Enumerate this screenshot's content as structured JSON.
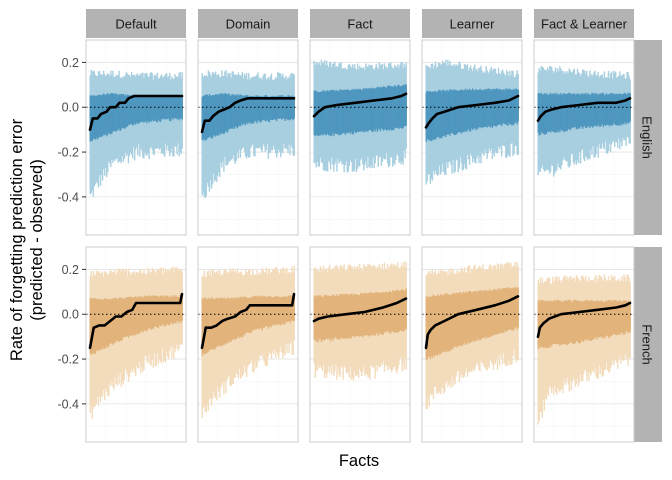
{
  "chart_data": {
    "type": "area",
    "xlabel": "Facts",
    "ylabel": [
      "Rate of forgetting prediction error",
      "(predicted - observed)"
    ],
    "ylim": [
      -0.57,
      0.3
    ],
    "yticks": [
      0.2,
      0.0,
      -0.2,
      -0.4
    ],
    "ytick_labels": [
      "0.2",
      "0.0",
      "-0.2",
      "-0.4"
    ],
    "grid": true,
    "reference_line_y": 0,
    "columns": [
      "Default",
      "Domain",
      "Fact",
      "Learner",
      "Fact & Learner"
    ],
    "rows": [
      "English",
      "French"
    ],
    "row_colors": {
      "English": {
        "outer": "#a8cfe0",
        "inner": "#4f97bf"
      },
      "French": {
        "outer": "#f3dcbc",
        "inner": "#e2b47c"
      }
    },
    "line_color": "#000000",
    "panels": [
      {
        "row": "English",
        "column": "Default",
        "median": [
          [
            0,
            -0.1
          ],
          [
            0.03,
            -0.05
          ],
          [
            0.08,
            -0.05
          ],
          [
            0.12,
            -0.03
          ],
          [
            0.18,
            -0.02
          ],
          [
            0.22,
            0.0
          ],
          [
            0.28,
            0.0
          ],
          [
            0.32,
            0.02
          ],
          [
            0.38,
            0.02
          ],
          [
            0.42,
            0.04
          ],
          [
            0.48,
            0.05
          ],
          [
            1.0,
            0.05
          ]
        ],
        "inner": [
          [
            0,
            -0.15,
            0.05
          ],
          [
            0.2,
            -0.12,
            0.06
          ],
          [
            0.5,
            -0.07,
            0.05
          ],
          [
            1.0,
            -0.05,
            0.05
          ]
        ],
        "outer": [
          [
            0,
            -0.4,
            0.15
          ],
          [
            0.1,
            -0.33,
            0.15
          ],
          [
            0.25,
            -0.25,
            0.15
          ],
          [
            0.5,
            -0.2,
            0.14
          ],
          [
            1.0,
            -0.19,
            0.14
          ]
        ]
      },
      {
        "row": "English",
        "column": "Domain",
        "median": [
          [
            0,
            -0.11
          ],
          [
            0.03,
            -0.06
          ],
          [
            0.08,
            -0.06
          ],
          [
            0.12,
            -0.04
          ],
          [
            0.18,
            -0.02
          ],
          [
            0.24,
            -0.01
          ],
          [
            0.3,
            0.0
          ],
          [
            0.36,
            0.02
          ],
          [
            0.42,
            0.03
          ],
          [
            0.5,
            0.04
          ],
          [
            1.0,
            0.04
          ]
        ],
        "inner": [
          [
            0,
            -0.15,
            0.05
          ],
          [
            0.2,
            -0.12,
            0.06
          ],
          [
            0.5,
            -0.07,
            0.05
          ],
          [
            1.0,
            -0.05,
            0.05
          ]
        ],
        "outer": [
          [
            0,
            -0.4,
            0.15
          ],
          [
            0.1,
            -0.33,
            0.15
          ],
          [
            0.25,
            -0.25,
            0.15
          ],
          [
            0.5,
            -0.2,
            0.14
          ],
          [
            1.0,
            -0.19,
            0.14
          ]
        ]
      },
      {
        "row": "English",
        "column": "Fact",
        "median": [
          [
            0,
            -0.04
          ],
          [
            0.05,
            -0.02
          ],
          [
            0.12,
            0.0
          ],
          [
            0.25,
            0.01
          ],
          [
            0.45,
            0.02
          ],
          [
            0.65,
            0.03
          ],
          [
            0.85,
            0.04
          ],
          [
            0.95,
            0.05
          ],
          [
            1.0,
            0.06
          ]
        ],
        "inner": [
          [
            0,
            -0.13,
            0.07
          ],
          [
            0.5,
            -0.11,
            0.08
          ],
          [
            1.0,
            -0.09,
            0.1
          ]
        ],
        "outer": [
          [
            0,
            -0.25,
            0.2
          ],
          [
            0.5,
            -0.26,
            0.18
          ],
          [
            1.0,
            -0.22,
            0.19
          ]
        ]
      },
      {
        "row": "English",
        "column": "Learner",
        "median": [
          [
            0,
            -0.09
          ],
          [
            0.03,
            -0.07
          ],
          [
            0.07,
            -0.05
          ],
          [
            0.12,
            -0.03
          ],
          [
            0.2,
            -0.02
          ],
          [
            0.35,
            0.0
          ],
          [
            0.55,
            0.01
          ],
          [
            0.75,
            0.02
          ],
          [
            0.9,
            0.03
          ],
          [
            1.0,
            0.05
          ]
        ],
        "inner": [
          [
            0,
            -0.15,
            0.07
          ],
          [
            0.5,
            -0.1,
            0.08
          ],
          [
            1.0,
            -0.07,
            0.08
          ]
        ],
        "outer": [
          [
            0,
            -0.33,
            0.18
          ],
          [
            0.2,
            -0.28,
            0.2
          ],
          [
            0.6,
            -0.22,
            0.17
          ],
          [
            1.0,
            -0.18,
            0.15
          ]
        ]
      },
      {
        "row": "English",
        "column": "Fact & Learner",
        "median": [
          [
            0,
            -0.06
          ],
          [
            0.03,
            -0.04
          ],
          [
            0.08,
            -0.02
          ],
          [
            0.15,
            -0.01
          ],
          [
            0.25,
            0.0
          ],
          [
            0.45,
            0.01
          ],
          [
            0.65,
            0.02
          ],
          [
            0.85,
            0.02
          ],
          [
            0.95,
            0.03
          ],
          [
            1.0,
            0.04
          ]
        ],
        "inner": [
          [
            0,
            -0.12,
            0.06
          ],
          [
            0.5,
            -0.09,
            0.06
          ],
          [
            1.0,
            -0.07,
            0.06
          ]
        ],
        "outer": [
          [
            0,
            -0.3,
            0.17
          ],
          [
            0.2,
            -0.27,
            0.17
          ],
          [
            0.6,
            -0.2,
            0.15
          ],
          [
            1.0,
            -0.15,
            0.14
          ]
        ]
      },
      {
        "row": "French",
        "column": "Default",
        "median": [
          [
            0,
            -0.15
          ],
          [
            0.04,
            -0.06
          ],
          [
            0.1,
            -0.05
          ],
          [
            0.16,
            -0.05
          ],
          [
            0.22,
            -0.03
          ],
          [
            0.28,
            -0.01
          ],
          [
            0.34,
            -0.01
          ],
          [
            0.4,
            0.01
          ],
          [
            0.46,
            0.02
          ],
          [
            0.5,
            0.05
          ],
          [
            0.98,
            0.05
          ],
          [
            1.0,
            0.09
          ]
        ],
        "inner": [
          [
            0,
            -0.18,
            0.07
          ],
          [
            0.3,
            -0.12,
            0.07
          ],
          [
            0.6,
            -0.07,
            0.08
          ],
          [
            1.0,
            -0.03,
            0.08
          ]
        ],
        "outer": [
          [
            0,
            -0.45,
            0.18
          ],
          [
            0.1,
            -0.38,
            0.18
          ],
          [
            0.3,
            -0.3,
            0.19
          ],
          [
            0.6,
            -0.22,
            0.19
          ],
          [
            1.0,
            -0.15,
            0.2
          ]
        ]
      },
      {
        "row": "French",
        "column": "Domain",
        "median": [
          [
            0,
            -0.15
          ],
          [
            0.04,
            -0.06
          ],
          [
            0.1,
            -0.06
          ],
          [
            0.16,
            -0.05
          ],
          [
            0.22,
            -0.03
          ],
          [
            0.28,
            -0.02
          ],
          [
            0.36,
            -0.01
          ],
          [
            0.42,
            0.01
          ],
          [
            0.48,
            0.02
          ],
          [
            0.52,
            0.04
          ],
          [
            0.98,
            0.04
          ],
          [
            1.0,
            0.09
          ]
        ],
        "inner": [
          [
            0,
            -0.18,
            0.07
          ],
          [
            0.3,
            -0.12,
            0.07
          ],
          [
            0.6,
            -0.07,
            0.08
          ],
          [
            1.0,
            -0.03,
            0.08
          ]
        ],
        "outer": [
          [
            0,
            -0.45,
            0.18
          ],
          [
            0.1,
            -0.38,
            0.18
          ],
          [
            0.3,
            -0.3,
            0.19
          ],
          [
            0.6,
            -0.22,
            0.19
          ],
          [
            1.0,
            -0.15,
            0.2
          ]
        ]
      },
      {
        "row": "French",
        "column": "Fact",
        "median": [
          [
            0,
            -0.03
          ],
          [
            0.05,
            -0.02
          ],
          [
            0.15,
            -0.01
          ],
          [
            0.35,
            0.0
          ],
          [
            0.55,
            0.01
          ],
          [
            0.75,
            0.03
          ],
          [
            0.9,
            0.05
          ],
          [
            1.0,
            0.07
          ]
        ],
        "inner": [
          [
            0,
            -0.12,
            0.08
          ],
          [
            0.5,
            -0.1,
            0.09
          ],
          [
            1.0,
            -0.07,
            0.11
          ]
        ],
        "outer": [
          [
            0,
            -0.25,
            0.2
          ],
          [
            0.5,
            -0.27,
            0.21
          ],
          [
            1.0,
            -0.22,
            0.22
          ]
        ]
      },
      {
        "row": "French",
        "column": "Learner",
        "median": [
          [
            0,
            -0.15
          ],
          [
            0.02,
            -0.09
          ],
          [
            0.05,
            -0.07
          ],
          [
            0.1,
            -0.05
          ],
          [
            0.2,
            -0.03
          ],
          [
            0.35,
            0.0
          ],
          [
            0.55,
            0.02
          ],
          [
            0.75,
            0.04
          ],
          [
            0.9,
            0.06
          ],
          [
            1.0,
            0.08
          ]
        ],
        "inner": [
          [
            0,
            -0.2,
            0.08
          ],
          [
            0.5,
            -0.12,
            0.1
          ],
          [
            1.0,
            -0.06,
            0.12
          ]
        ],
        "outer": [
          [
            0,
            -0.4,
            0.18
          ],
          [
            0.1,
            -0.35,
            0.18
          ],
          [
            0.4,
            -0.27,
            0.2
          ],
          [
            1.0,
            -0.18,
            0.22
          ]
        ]
      },
      {
        "row": "French",
        "column": "Fact & Learner",
        "median": [
          [
            0,
            -0.1
          ],
          [
            0.02,
            -0.06
          ],
          [
            0.06,
            -0.04
          ],
          [
            0.12,
            -0.02
          ],
          [
            0.25,
            0.0
          ],
          [
            0.45,
            0.01
          ],
          [
            0.65,
            0.02
          ],
          [
            0.85,
            0.03
          ],
          [
            0.95,
            0.04
          ],
          [
            1.0,
            0.05
          ]
        ],
        "inner": [
          [
            0,
            -0.15,
            0.06
          ],
          [
            0.5,
            -0.12,
            0.06
          ],
          [
            1.0,
            -0.08,
            0.06
          ]
        ],
        "outer": [
          [
            0,
            -0.5,
            0.15
          ],
          [
            0.1,
            -0.35,
            0.15
          ],
          [
            0.4,
            -0.3,
            0.16
          ],
          [
            1.0,
            -0.2,
            0.16
          ]
        ]
      }
    ]
  }
}
